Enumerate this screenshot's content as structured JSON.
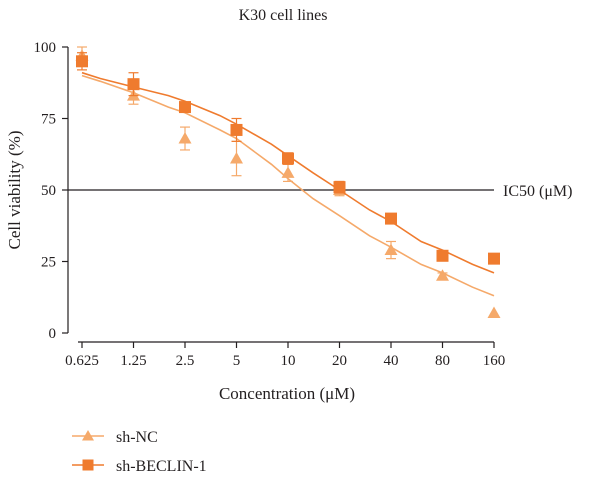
{
  "chart_data": {
    "type": "scatter",
    "title": "K30 cell lines",
    "xlabel": "Concentration (μM)",
    "ylabel": "Cell viability (%)",
    "x_scale": "log2",
    "xticks": [
      "0.625",
      "1.25",
      "2.5",
      "5",
      "10",
      "20",
      "40",
      "80",
      "160"
    ],
    "x": [
      0.625,
      1.25,
      2.5,
      5,
      10,
      20,
      40,
      80,
      160
    ],
    "yticks": [
      "0",
      "25",
      "50",
      "75",
      "100"
    ],
    "ylim": [
      0,
      100
    ],
    "reference_line": {
      "y": 50,
      "label": "IC50 (μM)"
    },
    "legend_position": "bottom-left",
    "series": [
      {
        "name": "sh-NC",
        "marker": "triangle",
        "color": "#f5a96a",
        "values": [
          97,
          83,
          68,
          61,
          56,
          50,
          29,
          20,
          7
        ],
        "errors": [
          3,
          3,
          4,
          6,
          3,
          2,
          3,
          1,
          0
        ],
        "fit_x": [
          0.625,
          0.8,
          1.25,
          2,
          2.5,
          4,
          5,
          8,
          10,
          14,
          20,
          30,
          40,
          60,
          80,
          120,
          160
        ],
        "fit_y": [
          90,
          88,
          84,
          79,
          77,
          71,
          68,
          59,
          54,
          47,
          41,
          34,
          30,
          24,
          21,
          16,
          13
        ]
      },
      {
        "name": "sh-BECLIN-1",
        "marker": "square",
        "color": "#ef7b2e",
        "values": [
          95,
          87,
          79,
          71,
          61,
          51,
          40,
          27,
          26
        ],
        "errors": [
          3,
          4,
          1,
          4,
          2,
          2,
          1,
          1,
          1
        ],
        "fit_x": [
          0.625,
          0.8,
          1.25,
          2,
          2.5,
          4,
          5,
          8,
          10,
          14,
          20,
          30,
          40,
          60,
          80,
          120,
          160
        ],
        "fit_y": [
          91,
          89,
          86,
          83,
          81,
          76,
          73,
          66,
          62,
          56,
          50,
          43,
          39,
          32,
          29,
          24,
          21
        ]
      }
    ]
  }
}
